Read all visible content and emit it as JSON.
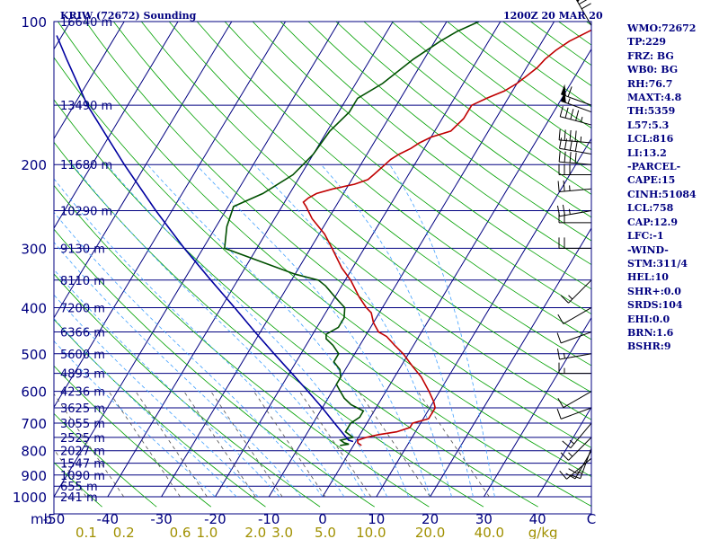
{
  "station_title": "KRIW (72672) Sounding",
  "valid_time": "1200Z 20 MAR 20",
  "chart_data": {
    "type": "line",
    "chart_kind": "skew-T log-P sounding",
    "colors": {
      "frame": "#000080",
      "isobar": "#000080",
      "isotherm": "#000080",
      "dry_adiabat": "#00a000",
      "moist_adiabat": "#40a0ff",
      "mixing_ratio": "#505050",
      "temperature": "#c00000",
      "dewpoint": "#005000",
      "parcel": "#0000a0",
      "label": "#000080",
      "mixing_label": "#a09000",
      "wind": "#000000"
    },
    "pressure_axis": {
      "scale": "log",
      "range_hpa": [
        100,
        1000
      ],
      "ticks": [
        {
          "p": 100,
          "label": "100"
        },
        {
          "p": 200,
          "label": "200"
        },
        {
          "p": 300,
          "label": "300"
        },
        {
          "p": 400,
          "label": "400"
        },
        {
          "p": 500,
          "label": "500"
        },
        {
          "p": 600,
          "label": "600"
        },
        {
          "p": 700,
          "label": "700"
        },
        {
          "p": 800,
          "label": "800"
        },
        {
          "p": 900,
          "label": "900"
        },
        {
          "p": 1000,
          "label": "1000"
        }
      ],
      "unit_label": "mb"
    },
    "temperature_axis": {
      "range_c": [
        -50,
        50
      ],
      "ticks": [
        {
          "t": -50,
          "label": "-50"
        },
        {
          "t": -40,
          "label": "-40"
        },
        {
          "t": -30,
          "label": "-30"
        },
        {
          "t": -20,
          "label": "-20"
        },
        {
          "t": -10,
          "label": "-10"
        },
        {
          "t": 0,
          "label": "0"
        },
        {
          "t": 10,
          "label": "10"
        },
        {
          "t": 20,
          "label": "20"
        },
        {
          "t": 30,
          "label": "30"
        },
        {
          "t": 40,
          "label": "40"
        },
        {
          "t": 50,
          "label": "C"
        }
      ]
    },
    "heights": [
      {
        "p": 100,
        "label": "16640 m"
      },
      {
        "p": 150,
        "label": "13490 m"
      },
      {
        "p": 200,
        "label": "11680 m"
      },
      {
        "p": 250,
        "label": "10290 m"
      },
      {
        "p": 300,
        "label": "9130 m"
      },
      {
        "p": 350,
        "label": "8110 m"
      },
      {
        "p": 400,
        "label": "7200 m"
      },
      {
        "p": 450,
        "label": "6366 m"
      },
      {
        "p": 500,
        "label": "5600 m"
      },
      {
        "p": 550,
        "label": "4893 m"
      },
      {
        "p": 600,
        "label": "4236 m"
      },
      {
        "p": 650,
        "label": "3625 m"
      },
      {
        "p": 700,
        "label": "3055 m"
      },
      {
        "p": 750,
        "label": "2525 m"
      },
      {
        "p": 800,
        "label": "2027 m"
      },
      {
        "p": 850,
        "label": "1547 m"
      },
      {
        "p": 900,
        "label": "1090 m"
      },
      {
        "p": 950,
        "label": "655 m"
      },
      {
        "p": 1000,
        "label": "241 m"
      }
    ],
    "mixing_ratio_ticks": [
      {
        "label": "0.1",
        "x_at_bottom": -44
      },
      {
        "label": "0.2",
        "x_at_bottom": -37
      },
      {
        "label": "0.6",
        "x_at_bottom": -26.5
      },
      {
        "label": "1.0",
        "x_at_bottom": -21.5
      },
      {
        "label": "2.0",
        "x_at_bottom": -12.5
      },
      {
        "label": "3.0",
        "x_at_bottom": -7.5
      },
      {
        "label": "5.0",
        "x_at_bottom": 0.5
      },
      {
        "label": "10.0",
        "x_at_bottom": 9
      },
      {
        "label": "20.0",
        "x_at_bottom": 20
      },
      {
        "label": "40.0",
        "x_at_bottom": 31
      },
      {
        "label": "g/kg",
        "x_at_bottom": 41
      }
    ],
    "series": [
      {
        "key": "temperature",
        "points": [
          [
            780,
            1.5
          ],
          [
            770,
            0.5
          ],
          [
            760,
            0.2
          ],
          [
            750,
            1.5
          ],
          [
            740,
            3.5
          ],
          [
            730,
            6.5
          ],
          [
            715,
            8.5
          ],
          [
            700,
            8.5
          ],
          [
            685,
            11
          ],
          [
            670,
            11
          ],
          [
            650,
            11
          ],
          [
            630,
            10
          ],
          [
            600,
            8
          ],
          [
            560,
            5
          ],
          [
            530,
            2
          ],
          [
            500,
            -1
          ],
          [
            480,
            -3.5
          ],
          [
            460,
            -6
          ],
          [
            450,
            -8
          ],
          [
            430,
            -10
          ],
          [
            410,
            -11.5
          ],
          [
            400,
            -13
          ],
          [
            380,
            -15.5
          ],
          [
            350,
            -19
          ],
          [
            330,
            -22
          ],
          [
            300,
            -26
          ],
          [
            280,
            -29
          ],
          [
            260,
            -33
          ],
          [
            245,
            -35.5
          ],
          [
            240,
            -36.5
          ],
          [
            235,
            -36
          ],
          [
            230,
            -35
          ],
          [
            225,
            -32.5
          ],
          [
            220,
            -29
          ],
          [
            215,
            -27
          ],
          [
            210,
            -26.5
          ],
          [
            205,
            -26
          ],
          [
            200,
            -25.5
          ],
          [
            195,
            -25
          ],
          [
            190,
            -24
          ],
          [
            185,
            -22.5
          ],
          [
            180,
            -21.5
          ],
          [
            175,
            -20
          ],
          [
            170,
            -17
          ],
          [
            165,
            -16.5
          ],
          [
            160,
            -16
          ],
          [
            155,
            -16
          ],
          [
            150,
            -16
          ],
          [
            145,
            -14
          ],
          [
            140,
            -11.5
          ],
          [
            135,
            -10
          ],
          [
            130,
            -9
          ],
          [
            125,
            -8
          ],
          [
            120,
            -7.5
          ],
          [
            115,
            -6.5
          ],
          [
            110,
            -5
          ],
          [
            105,
            -2.5
          ],
          [
            102,
            -1
          ],
          [
            100,
            -1
          ]
        ]
      },
      {
        "key": "dewpoint",
        "points": [
          [
            780,
            -2.5
          ],
          [
            775,
            -1
          ],
          [
            770,
            -2
          ],
          [
            760,
            -3
          ],
          [
            750,
            -1
          ],
          [
            730,
            -3
          ],
          [
            700,
            -3
          ],
          [
            680,
            -2
          ],
          [
            660,
            -2
          ],
          [
            640,
            -5
          ],
          [
            620,
            -7
          ],
          [
            600,
            -8.5
          ],
          [
            580,
            -10
          ],
          [
            560,
            -10
          ],
          [
            540,
            -11
          ],
          [
            520,
            -13
          ],
          [
            500,
            -13
          ],
          [
            480,
            -15
          ],
          [
            465,
            -17
          ],
          [
            455,
            -17.5
          ],
          [
            440,
            -16
          ],
          [
            420,
            -16
          ],
          [
            400,
            -17
          ],
          [
            380,
            -20
          ],
          [
            360,
            -23
          ],
          [
            350,
            -25
          ],
          [
            340,
            -30
          ],
          [
            300,
            -46
          ],
          [
            270,
            -48
          ],
          [
            245,
            -49
          ],
          [
            230,
            -45
          ],
          [
            210,
            -41.5
          ],
          [
            190,
            -40
          ],
          [
            170,
            -39.5
          ],
          [
            155,
            -38
          ],
          [
            145,
            -38
          ],
          [
            135,
            -35
          ],
          [
            120,
            -32
          ],
          [
            110,
            -29
          ],
          [
            105,
            -27
          ],
          [
            100,
            -24
          ]
        ]
      },
      {
        "key": "parcel",
        "points": [
          [
            765,
            -0.5
          ],
          [
            760,
            -1.5
          ],
          [
            740,
            -3
          ],
          [
            700,
            -6
          ],
          [
            650,
            -10
          ],
          [
            600,
            -14.5
          ],
          [
            550,
            -19.5
          ],
          [
            500,
            -25
          ],
          [
            450,
            -31
          ],
          [
            400,
            -37.5
          ],
          [
            350,
            -45
          ],
          [
            300,
            -53.5
          ],
          [
            250,
            -63
          ],
          [
            200,
            -74
          ],
          [
            150,
            -87.5
          ],
          [
            120,
            -96.5
          ],
          [
            107,
            -101
          ]
        ]
      }
    ],
    "wind_barbs": [
      {
        "p": 102,
        "dir": 330,
        "spd": 70
      },
      {
        "p": 150,
        "dir": 290,
        "spd": 60
      },
      {
        "p": 155,
        "dir": 290,
        "spd": 55
      },
      {
        "p": 165,
        "dir": 285,
        "spd": 45
      },
      {
        "p": 180,
        "dir": 275,
        "spd": 45
      },
      {
        "p": 190,
        "dir": 280,
        "spd": 40
      },
      {
        "p": 200,
        "dir": 275,
        "spd": 40
      },
      {
        "p": 210,
        "dir": 270,
        "spd": 30
      },
      {
        "p": 225,
        "dir": 265,
        "spd": 25
      },
      {
        "p": 250,
        "dir": 260,
        "spd": 25
      },
      {
        "p": 265,
        "dir": 270,
        "spd": 20
      },
      {
        "p": 300,
        "dir": 270,
        "spd": 20
      },
      {
        "p": 350,
        "dir": 225,
        "spd": 15
      },
      {
        "p": 400,
        "dir": 240,
        "spd": 10
      },
      {
        "p": 450,
        "dir": 250,
        "spd": 10
      },
      {
        "p": 500,
        "dir": 260,
        "spd": 15
      },
      {
        "p": 550,
        "dir": 270,
        "spd": 15
      },
      {
        "p": 600,
        "dir": 240,
        "spd": 10
      },
      {
        "p": 650,
        "dir": 250,
        "spd": 10
      },
      {
        "p": 700,
        "dir": 220,
        "spd": 15
      },
      {
        "p": 750,
        "dir": 225,
        "spd": 15
      },
      {
        "p": 790,
        "dir": 200,
        "spd": 15
      },
      {
        "p": 800,
        "dir": 210,
        "spd": 20
      },
      {
        "p": 830,
        "dir": 230,
        "spd": 10
      }
    ]
  },
  "indices": [
    "WMO:72672",
    "TP:229",
    "FRZ: BG",
    "WB0: BG",
    "RH:76.7",
    "MAXT:4.8",
    "TH:5359",
    "L57:5.3",
    "LCL:816",
    "LI:13.2",
    "-PARCEL-",
    "CAPE:15",
    "CINH:51084",
    "LCL:758",
    "CAP:12.9",
    "LFC:-1",
    "-WIND-",
    "STM:311/4",
    "HEL:10",
    "SHR+:0.0",
    "SRDS:104",
    "EHI:0.0",
    "BRN:1.6",
    "BSHR:9"
  ]
}
